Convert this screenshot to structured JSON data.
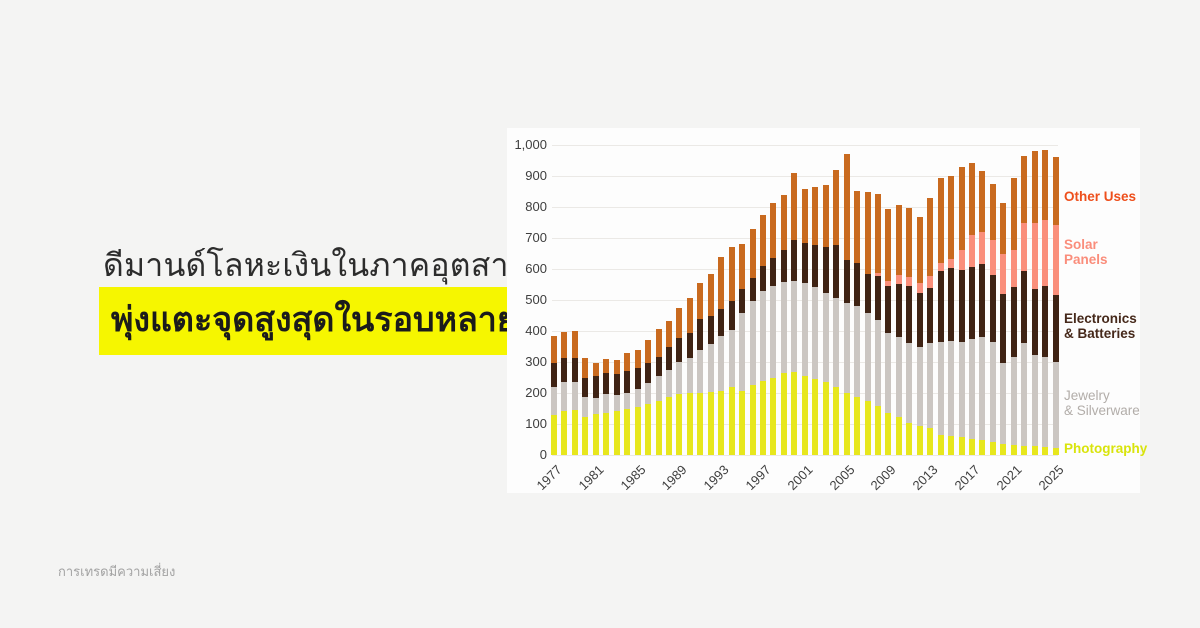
{
  "page": {
    "background_color": "#f4f4f3"
  },
  "headline": {
    "line1": "ดีมานด์โลหะเงินในภาคอุตสาหกรรม",
    "line2": "พุ่งแตะจุดสูงสุดในรอบหลายปี",
    "highlight_color": "#f6f600",
    "text_color": "#2c2c2c"
  },
  "footer": {
    "disclaimer": "การเทรดมีความเสี่ยง"
  },
  "chart_data": {
    "type": "bar",
    "stacked": true,
    "title": "",
    "xlabel": "",
    "ylabel": "",
    "ylim": [
      0,
      1000
    ],
    "grid": "horizontal",
    "legend_position": "right",
    "y_tick_labels": [
      "0",
      "100",
      "200",
      "300",
      "400",
      "500",
      "600",
      "700",
      "800",
      "900",
      "1,000"
    ],
    "x_tick_labels": [
      "1977",
      "1981",
      "1985",
      "1989",
      "1993",
      "1997",
      "2001",
      "2005",
      "2009",
      "2013",
      "2017",
      "2021",
      "2025"
    ],
    "years": [
      1977,
      1978,
      1979,
      1980,
      1981,
      1982,
      1983,
      1984,
      1985,
      1986,
      1987,
      1988,
      1989,
      1990,
      1991,
      1992,
      1993,
      1994,
      1995,
      1996,
      1997,
      1998,
      1999,
      2000,
      2001,
      2002,
      2003,
      2004,
      2005,
      2006,
      2007,
      2008,
      2009,
      2010,
      2011,
      2012,
      2013,
      2014,
      2015,
      2016,
      2017,
      2018,
      2019,
      2020,
      2021,
      2022,
      2023,
      2024,
      2025
    ],
    "series": [
      {
        "name": "Photography",
        "legend_lines": [
          "Photography"
        ],
        "color": "#e7e71d",
        "legend_color": "#d9e40c",
        "values": [
          130,
          142,
          144,
          124,
          131,
          137,
          142,
          147,
          156,
          165,
          175,
          188,
          197,
          199,
          199,
          202,
          206,
          220,
          207,
          226,
          239,
          249,
          263,
          267,
          255,
          244,
          234,
          218,
          199,
          188,
          175,
          158,
          137,
          122,
          104,
          94,
          86,
          65,
          60,
          57,
          52,
          48,
          43,
          37,
          32,
          30,
          28,
          26,
          24
        ]
      },
      {
        "name": "Jewelry & Silverware",
        "legend_lines": [
          "Jewelry",
          "& Silverware"
        ],
        "color": "#cbc6c2",
        "legend_color": "#b2ada9",
        "values": [
          90,
          92,
          93,
          64,
          52,
          59,
          52,
          54,
          56,
          66,
          80,
          86,
          104,
          113,
          140,
          155,
          179,
          183,
          252,
          272,
          290,
          296,
          296,
          295,
          299,
          297,
          290,
          287,
          290,
          293,
          284,
          278,
          256,
          258,
          258,
          253,
          276,
          301,
          309,
          309,
          321,
          332,
          323,
          261,
          285,
          330,
          295,
          291,
          277
        ]
      },
      {
        "name": "Electronics & Batteries",
        "legend_lines": [
          "Electronics",
          "& Batteries"
        ],
        "color": "#3f2314",
        "legend_color": "#46291b",
        "values": [
          78,
          78,
          76,
          59,
          72,
          67,
          67,
          70,
          68,
          67,
          62,
          73,
          75,
          80,
          99,
          91,
          85,
          95,
          75,
          74,
          81,
          89,
          102,
          132,
          131,
          136,
          146,
          172,
          139,
          139,
          125,
          142,
          152,
          172,
          183,
          177,
          176,
          228,
          233,
          231,
          235,
          235,
          215,
          220,
          226,
          234,
          213,
          229,
          215
        ]
      },
      {
        "name": "Solar Panels",
        "legend_lines": [
          "Solar",
          "Panels"
        ],
        "color": "#fa8f7b",
        "legend_color": "#fa8d7b",
        "values": [
          0,
          0,
          0,
          0,
          0,
          0,
          0,
          0,
          0,
          0,
          0,
          0,
          0,
          0,
          0,
          0,
          0,
          0,
          0,
          0,
          0,
          0,
          0,
          0,
          0,
          0,
          0,
          0,
          0,
          0,
          0,
          8,
          17,
          29,
          30,
          32,
          40,
          24,
          30,
          64,
          102,
          105,
          112,
          132,
          118,
          153,
          214,
          212,
          226
        ]
      },
      {
        "name": "Other Uses",
        "legend_lines": [
          "Other Uses"
        ],
        "color": "#c96a1f",
        "legend_color": "#ee4f1c",
        "values": [
          87,
          86,
          86,
          65,
          41,
          46,
          45,
          57,
          59,
          73,
          88,
          86,
          97,
          113,
          118,
          135,
          170,
          172,
          146,
          156,
          164,
          178,
          179,
          217,
          172,
          186,
          201,
          244,
          342,
          232,
          266,
          256,
          231,
          226,
          221,
          211,
          250,
          274,
          269,
          267,
          231,
          196,
          180,
          162,
          231,
          219,
          230,
          227,
          218
        ]
      }
    ]
  }
}
